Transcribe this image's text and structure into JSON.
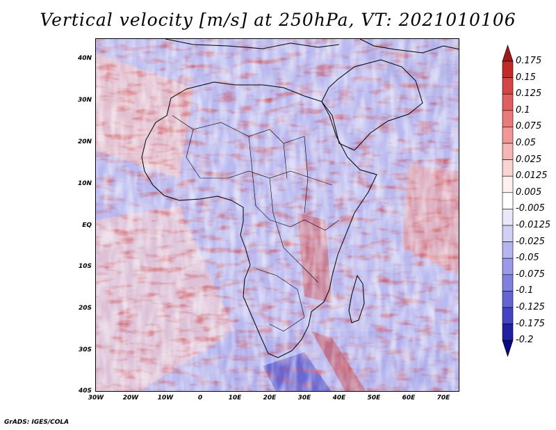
{
  "title": "Vertical velocity [m/s] at 250hPa, VT: 2021010106",
  "map": {
    "region": "Africa",
    "variable": "Vertical velocity at 250hPa",
    "units": "m/s",
    "valid_time": "2021010106",
    "lon_range": [
      -30,
      75
    ],
    "lat_range": [
      -40,
      45
    ],
    "lat_labels": [
      "40N",
      "30N",
      "20N",
      "10N",
      "EQ",
      "10S",
      "20S",
      "30S",
      "40S"
    ],
    "lon_labels": [
      "30W",
      "20W",
      "10W",
      "0",
      "10E",
      "20E",
      "30E",
      "40E",
      "50E",
      "60E",
      "70E"
    ]
  },
  "colorbar": {
    "labels": [
      "0.175",
      "0.15",
      "0.125",
      "0.1",
      "0.075",
      "0.05",
      "0.025",
      "0.0125",
      "0.005",
      "-0.005",
      "-0.0125",
      "-0.025",
      "-0.05",
      "-0.075",
      "-0.1",
      "-0.125",
      "-0.175",
      "-0.2"
    ],
    "colors": [
      "#a01818",
      "#c22a2a",
      "#d64545",
      "#e06060",
      "#ea7b7b",
      "#f09898",
      "#f6b6b6",
      "#fad3d3",
      "#fff0f0",
      "#ffffff",
      "#e8e8fa",
      "#d0d0f4",
      "#b4b4ee",
      "#9a9ae6",
      "#8080de",
      "#6464d2",
      "#4444c4",
      "#2020a0",
      "#0a0a80"
    ]
  },
  "credit": "GrADS: IGES/COLA"
}
